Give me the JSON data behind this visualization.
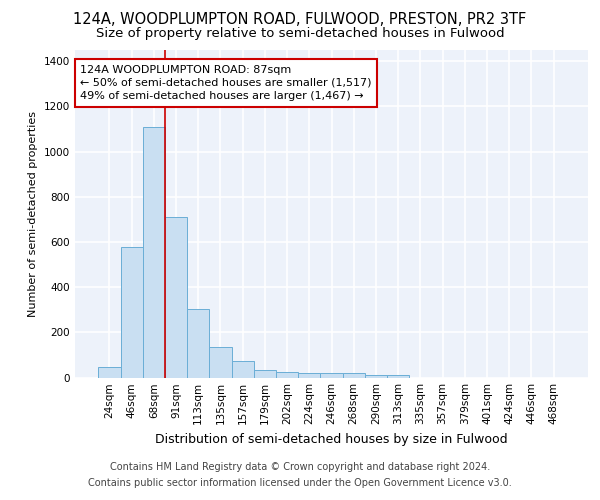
{
  "title1": "124A, WOODPLUMPTON ROAD, FULWOOD, PRESTON, PR2 3TF",
  "title2": "Size of property relative to semi-detached houses in Fulwood",
  "xlabel": "Distribution of semi-detached houses by size in Fulwood",
  "ylabel": "Number of semi-detached properties",
  "categories": [
    "24sqm",
    "46sqm",
    "68sqm",
    "91sqm",
    "113sqm",
    "135sqm",
    "157sqm",
    "179sqm",
    "202sqm",
    "224sqm",
    "246sqm",
    "268sqm",
    "290sqm",
    "313sqm",
    "335sqm",
    "357sqm",
    "379sqm",
    "401sqm",
    "424sqm",
    "446sqm",
    "468sqm"
  ],
  "values": [
    48,
    578,
    1107,
    710,
    305,
    133,
    72,
    35,
    25,
    20,
    20,
    20,
    10,
    10,
    0,
    0,
    0,
    0,
    0,
    0,
    0
  ],
  "bar_color": "#c9dff2",
  "bar_edge_color": "#6aaed6",
  "vline_color": "#cc0000",
  "annotation_text": "124A WOODPLUMPTON ROAD: 87sqm\n← 50% of semi-detached houses are smaller (1,517)\n49% of semi-detached houses are larger (1,467) →",
  "annotation_box_color": "white",
  "annotation_box_edge": "#cc0000",
  "ylim": [
    0,
    1450
  ],
  "yticks": [
    0,
    200,
    400,
    600,
    800,
    1000,
    1200,
    1400
  ],
  "footer1": "Contains HM Land Registry data © Crown copyright and database right 2024.",
  "footer2": "Contains public sector information licensed under the Open Government Licence v3.0.",
  "bg_color": "#edf2fa",
  "grid_color": "white",
  "title1_fontsize": 10.5,
  "title2_fontsize": 9.5,
  "ylabel_fontsize": 8,
  "xlabel_fontsize": 9,
  "tick_fontsize": 7.5,
  "footer_fontsize": 7,
  "ann_fontsize": 8
}
